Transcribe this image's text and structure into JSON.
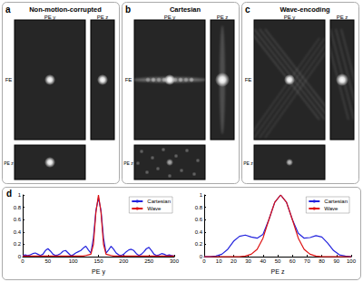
{
  "panels": [
    {
      "letter": "a",
      "title": "Non-motion-corrupted"
    },
    {
      "letter": "b",
      "title": "Cartesian"
    },
    {
      "letter": "c",
      "title": "Wave-encoding"
    }
  ],
  "image_axis_labels": {
    "horizontal": "PE y",
    "vertical": "FE",
    "slice": "PE z"
  },
  "chart_panel_letter": "d",
  "chart_data": [
    {
      "type": "line",
      "xlabel": "PE y",
      "xlim": [
        0,
        300
      ],
      "xticks": [
        0,
        50,
        100,
        150,
        200,
        250,
        300
      ],
      "ylim": [
        0,
        1
      ],
      "yticks": [
        0,
        0.2,
        0.4,
        0.6,
        0.8,
        1
      ],
      "legend": "upper right",
      "x": [
        0,
        5,
        10,
        15,
        20,
        25,
        30,
        35,
        40,
        45,
        50,
        55,
        60,
        65,
        70,
        75,
        80,
        85,
        90,
        95,
        100,
        105,
        110,
        115,
        120,
        125,
        130,
        135,
        140,
        145,
        150,
        155,
        160,
        165,
        170,
        175,
        180,
        185,
        190,
        195,
        200,
        205,
        210,
        215,
        220,
        225,
        230,
        235,
        240,
        245,
        250,
        255,
        260,
        265,
        270,
        275,
        280,
        285,
        290,
        295,
        300
      ],
      "series": [
        {
          "name": "Cartesian",
          "color": "#2222dd",
          "values": [
            0.02,
            0.03,
            0.02,
            0.03,
            0.05,
            0.06,
            0.04,
            0.02,
            0.04,
            0.1,
            0.13,
            0.09,
            0.04,
            0.02,
            0.03,
            0.05,
            0.09,
            0.1,
            0.06,
            0.02,
            0.03,
            0.06,
            0.08,
            0.1,
            0.14,
            0.17,
            0.11,
            0.06,
            0.3,
            0.75,
            0.95,
            0.75,
            0.3,
            0.06,
            0.11,
            0.17,
            0.12,
            0.06,
            0.03,
            0.02,
            0.04,
            0.08,
            0.11,
            0.12,
            0.1,
            0.05,
            0.02,
            0.04,
            0.08,
            0.13,
            0.15,
            0.1,
            0.04,
            0.02,
            0.03,
            0.05,
            0.04,
            0.02,
            0.03,
            0.02,
            0.01
          ]
        },
        {
          "name": "Wave",
          "color": "#dd1111",
          "values": [
            0.01,
            0.01,
            0.01,
            0.01,
            0.01,
            0.01,
            0.01,
            0.01,
            0.01,
            0.01,
            0.01,
            0.01,
            0.01,
            0.01,
            0.01,
            0.01,
            0.01,
            0.01,
            0.01,
            0.01,
            0.01,
            0.01,
            0.01,
            0.01,
            0.01,
            0.02,
            0.03,
            0.04,
            0.2,
            0.72,
            1,
            0.72,
            0.2,
            0.04,
            0.03,
            0.02,
            0.01,
            0.01,
            0.01,
            0.01,
            0.01,
            0.01,
            0.01,
            0.01,
            0.01,
            0.01,
            0.01,
            0.01,
            0.01,
            0.01,
            0.01,
            0.01,
            0.01,
            0.01,
            0.01,
            0.01,
            0.01,
            0.01,
            0.01,
            0.01,
            0.01
          ]
        }
      ]
    },
    {
      "type": "line",
      "xlabel": "PE z",
      "xlim": [
        0,
        100
      ],
      "xticks": [
        0,
        10,
        20,
        30,
        40,
        50,
        60,
        70,
        80,
        90,
        100
      ],
      "ylim": [
        0,
        1
      ],
      "yticks": [
        0,
        0.2,
        0.4,
        0.6,
        0.8,
        1
      ],
      "legend": "upper right",
      "x": [
        0,
        4,
        8,
        12,
        16,
        20,
        24,
        28,
        32,
        36,
        40,
        44,
        48,
        52,
        56,
        60,
        64,
        68,
        72,
        76,
        80,
        84,
        88,
        92,
        96,
        100
      ],
      "series": [
        {
          "name": "Cartesian",
          "color": "#2222dd",
          "values": [
            0,
            0,
            0.01,
            0.04,
            0.12,
            0.25,
            0.33,
            0.35,
            0.32,
            0.3,
            0.36,
            0.6,
            0.88,
            1,
            0.88,
            0.6,
            0.38,
            0.3,
            0.31,
            0.34,
            0.32,
            0.22,
            0.1,
            0.03,
            0.01,
            0
          ]
        },
        {
          "name": "Wave",
          "color": "#dd1111",
          "values": [
            0,
            0,
            0,
            0,
            0,
            0,
            0,
            0.01,
            0.04,
            0.12,
            0.3,
            0.6,
            0.88,
            1,
            0.88,
            0.6,
            0.3,
            0.12,
            0.04,
            0.01,
            0,
            0,
            0,
            0,
            0,
            0
          ]
        }
      ]
    }
  ]
}
